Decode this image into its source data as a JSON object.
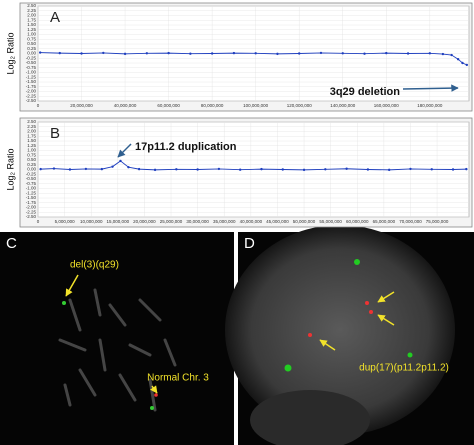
{
  "chart_data": [
    {
      "type": "line",
      "panel": "A",
      "ylabel": "Log₂ Ratio",
      "annotation": "3q29 deletion",
      "grid": true,
      "xlim": [
        0,
        198000000
      ],
      "ylim": [
        -2.5,
        2.5
      ],
      "xticks": [
        0,
        {
          "value": 20000000,
          "label": "20,000,000"
        },
        {
          "value": 40000000,
          "label": "40,000,000"
        },
        {
          "value": 60000000,
          "label": "60,000,000"
        },
        {
          "value": 80000000,
          "label": "80,000,000"
        },
        {
          "value": 100000000,
          "label": "100,000,000"
        },
        {
          "value": 120000000,
          "label": "120,000,000"
        },
        {
          "value": 140000000,
          "label": "140,000,000"
        },
        {
          "value": 160000000,
          "label": "160,000,000"
        },
        {
          "value": 180000000,
          "label": "180,000,000"
        }
      ],
      "yticks": [
        {
          "value": 2.5,
          "label": "2.50"
        },
        {
          "value": 2.25,
          "label": "2.25"
        },
        {
          "value": 2.0,
          "label": "2.00"
        },
        {
          "value": 1.75,
          "label": "1.75"
        },
        {
          "value": 1.5,
          "label": "1.50"
        },
        {
          "value": 1.25,
          "label": "1.25"
        },
        {
          "value": 1.0,
          "label": "1.00"
        },
        {
          "value": 0.75,
          "label": "0.75"
        },
        {
          "value": 0.5,
          "label": "0.50"
        },
        {
          "value": 0.25,
          "label": "0.25"
        },
        {
          "value": 0,
          "label": "0.00"
        },
        {
          "value": -0.25,
          "label": "-0.25"
        },
        {
          "value": -0.5,
          "label": "-0.50"
        },
        {
          "value": -0.75,
          "label": "-0.75"
        },
        {
          "value": -1.0,
          "label": "-1.00"
        },
        {
          "value": -1.25,
          "label": "-1.25"
        },
        {
          "value": -1.5,
          "label": "-1.50"
        },
        {
          "value": -1.75,
          "label": "-1.75"
        },
        {
          "value": -2.0,
          "label": "-2.00"
        },
        {
          "value": -2.25,
          "label": "-2.25"
        },
        {
          "value": -2.5,
          "label": "-2.50"
        }
      ],
      "series": [
        {
          "name": "Log2 ratio",
          "color": "#1f3fbf",
          "x": [
            1000000,
            10000000,
            20000000,
            30000000,
            40000000,
            50000000,
            60000000,
            70000000,
            80000000,
            90000000,
            100000000,
            110000000,
            120000000,
            130000000,
            140000000,
            150000000,
            160000000,
            170000000,
            180000000,
            186000000,
            190000000,
            193000000,
            195000000,
            197000000
          ],
          "values": [
            0.05,
            0.02,
            0.0,
            0.03,
            -0.02,
            0.01,
            0.02,
            -0.01,
            0.0,
            0.02,
            0.01,
            -0.02,
            0.0,
            0.03,
            0.01,
            -0.01,
            0.02,
            0.0,
            0.01,
            -0.03,
            -0.08,
            -0.3,
            -0.5,
            -0.6
          ]
        }
      ]
    },
    {
      "type": "line",
      "panel": "B",
      "ylabel": "Log₂ Ratio",
      "annotation": "17p11.2 duplication",
      "grid": true,
      "xlim": [
        0,
        81000000
      ],
      "ylim": [
        -2.5,
        2.5
      ],
      "xticks": [
        0,
        {
          "value": 5000000,
          "label": "5,000,000"
        },
        {
          "value": 10000000,
          "label": "10,000,000"
        },
        {
          "value": 15000000,
          "label": "15,000,000"
        },
        {
          "value": 20000000,
          "label": "20,000,000"
        },
        {
          "value": 25000000,
          "label": "25,000,000"
        },
        {
          "value": 30000000,
          "label": "30,000,000"
        },
        {
          "value": 35000000,
          "label": "35,000,000"
        },
        {
          "value": 40000000,
          "label": "40,000,000"
        },
        {
          "value": 45000000,
          "label": "45,000,000"
        },
        {
          "value": 50000000,
          "label": "50,000,000"
        },
        {
          "value": 55000000,
          "label": "55,000,000"
        },
        {
          "value": 60000000,
          "label": "60,000,000"
        },
        {
          "value": 65000000,
          "label": "65,000,000"
        },
        {
          "value": 70000000,
          "label": "70,000,000"
        },
        {
          "value": 75000000,
          "label": "75,000,000"
        }
      ],
      "yticks": [
        {
          "value": 2.5,
          "label": "2.50"
        },
        {
          "value": 2.25,
          "label": "2.25"
        },
        {
          "value": 2.0,
          "label": "2.00"
        },
        {
          "value": 1.75,
          "label": "1.75"
        },
        {
          "value": 1.5,
          "label": "1.50"
        },
        {
          "value": 1.25,
          "label": "1.25"
        },
        {
          "value": 1.0,
          "label": "1.00"
        },
        {
          "value": 0.75,
          "label": "0.75"
        },
        {
          "value": 0.5,
          "label": "0.50"
        },
        {
          "value": 0.25,
          "label": "0.25"
        },
        {
          "value": 0,
          "label": "0.00"
        },
        {
          "value": -0.25,
          "label": "-0.25"
        },
        {
          "value": -0.5,
          "label": "-0.50"
        },
        {
          "value": -0.75,
          "label": "-0.75"
        },
        {
          "value": -1.0,
          "label": "-1.00"
        },
        {
          "value": -1.25,
          "label": "-1.25"
        },
        {
          "value": -1.5,
          "label": "-1.50"
        },
        {
          "value": -1.75,
          "label": "-1.75"
        },
        {
          "value": -2.0,
          "label": "-2.00"
        },
        {
          "value": -2.25,
          "label": "-2.25"
        },
        {
          "value": -2.5,
          "label": "-2.50"
        }
      ],
      "series": [
        {
          "name": "Log2 ratio",
          "color": "#1f3fbf",
          "x": [
            500000,
            3000000,
            6000000,
            9000000,
            12000000,
            14000000,
            15500000,
            17000000,
            19000000,
            22000000,
            26000000,
            30000000,
            34000000,
            38000000,
            42000000,
            46000000,
            50000000,
            54000000,
            58000000,
            62000000,
            66000000,
            70000000,
            74000000,
            78000000,
            80500000
          ],
          "values": [
            0.02,
            0.05,
            0.0,
            0.03,
            0.02,
            0.15,
            0.45,
            0.12,
            0.02,
            -0.02,
            0.01,
            0.0,
            0.03,
            -0.01,
            0.02,
            0.0,
            -0.02,
            0.01,
            0.04,
            0.0,
            -0.02,
            0.03,
            0.01,
            0.0,
            0.02
          ]
        }
      ]
    }
  ],
  "photos": [
    {
      "panel": "C",
      "labels": [
        "del(3)(q29)",
        "Normal Chr. 3"
      ]
    },
    {
      "panel": "D",
      "labels": [
        "dup(17)(p11.2p11.2)"
      ]
    }
  ]
}
